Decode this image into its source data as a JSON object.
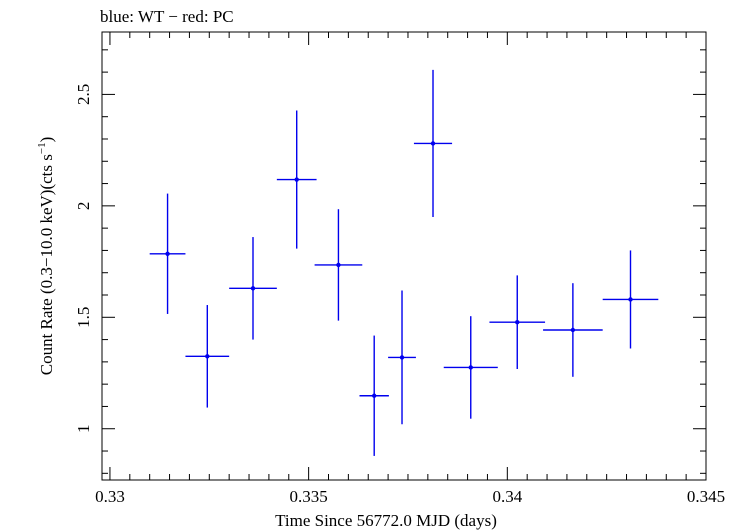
{
  "chart_data": {
    "type": "scatter",
    "title": "blue: WT − red: PC",
    "xlabel": "Time Since 56772.0 MJD (days)",
    "ylabel_main": "Count Rate (0.3−10.0 keV)(cts s",
    "ylabel_sup": "−1",
    "ylabel_close": ")",
    "xlim": [
      0.3298,
      0.345
    ],
    "ylim": [
      0.77,
      2.78
    ],
    "x_ticks": [
      {
        "value": 0.33,
        "label": "0.33"
      },
      {
        "value": 0.335,
        "label": "0.335"
      },
      {
        "value": 0.34,
        "label": "0.34"
      },
      {
        "value": 0.345,
        "label": "0.345"
      }
    ],
    "y_ticks": [
      {
        "value": 1.0,
        "label": "1"
      },
      {
        "value": 1.5,
        "label": "1.5"
      },
      {
        "value": 2.0,
        "label": "2"
      },
      {
        "value": 2.5,
        "label": "2.5"
      }
    ],
    "series": [
      {
        "name": "WT",
        "color": "#0000ee",
        "points": [
          {
            "x": 0.33145,
            "xerr": 0.00045,
            "y": 1.785,
            "yerr": 0.27
          },
          {
            "x": 0.33245,
            "xerr": 0.00055,
            "y": 1.325,
            "yerr": 0.23
          },
          {
            "x": 0.3336,
            "xerr": 0.0006,
            "y": 1.63,
            "yerr": 0.23
          },
          {
            "x": 0.3347,
            "xerr": 0.0005,
            "y": 2.118,
            "yerr": 0.31
          },
          {
            "x": 0.33575,
            "xerr": 0.0006,
            "y": 1.735,
            "yerr": 0.25
          },
          {
            "x": 0.33665,
            "xerr": 0.00037,
            "y": 1.148,
            "yerr": 0.27
          },
          {
            "x": 0.33735,
            "xerr": 0.00035,
            "y": 1.32,
            "yerr": 0.3
          },
          {
            "x": 0.33813,
            "xerr": 0.00048,
            "y": 2.28,
            "yerr": 0.33
          },
          {
            "x": 0.33908,
            "xerr": 0.00068,
            "y": 1.275,
            "yerr": 0.23
          },
          {
            "x": 0.34025,
            "xerr": 0.0007,
            "y": 1.478,
            "yerr": 0.21
          },
          {
            "x": 0.34165,
            "xerr": 0.00075,
            "y": 1.443,
            "yerr": 0.21
          },
          {
            "x": 0.3431,
            "xerr": 0.0007,
            "y": 1.58,
            "yerr": 0.22
          }
        ]
      }
    ]
  }
}
